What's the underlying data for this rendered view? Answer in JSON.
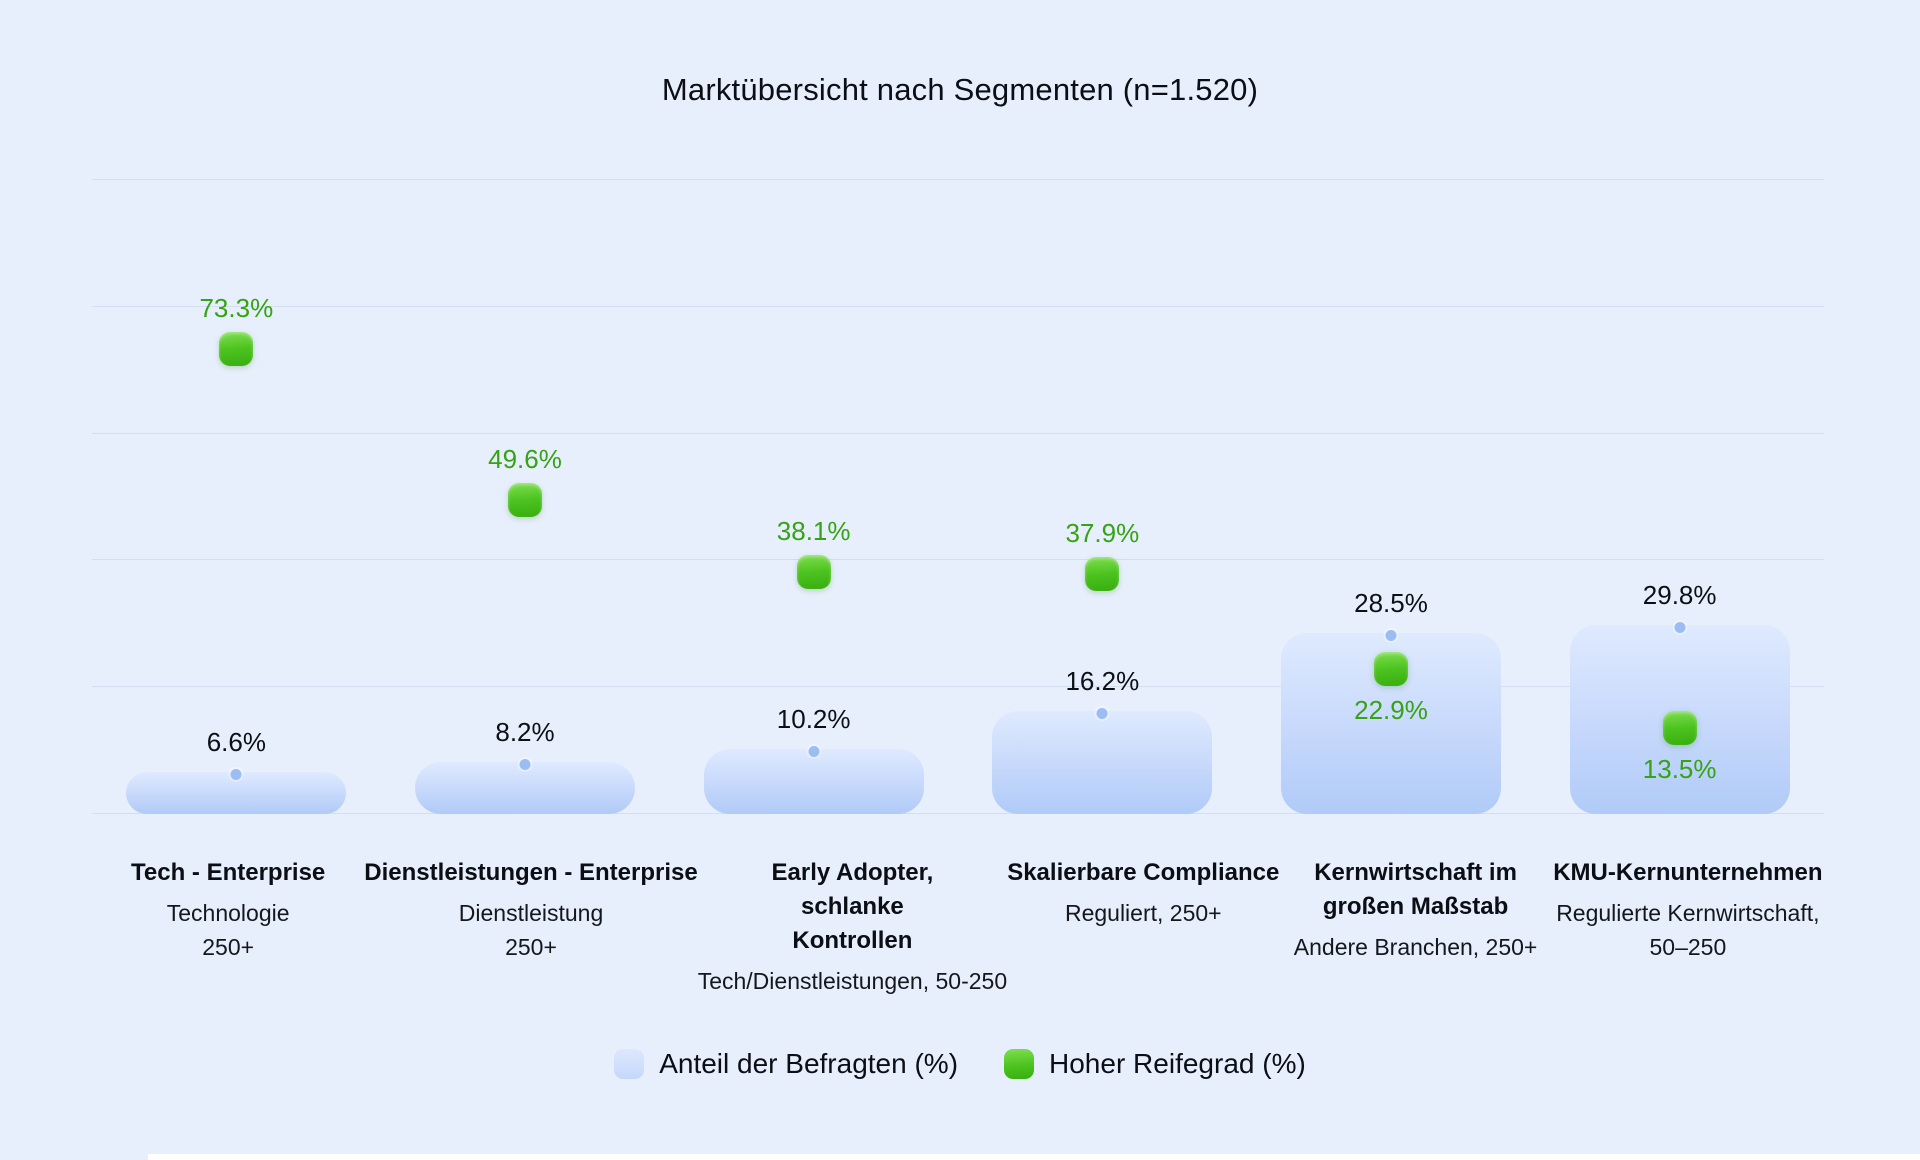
{
  "title": "Marktübersicht nach Segmenten (n=1.520)",
  "legend": {
    "items": [
      {
        "label": "Anteil der Befragten (%)",
        "swatch": "blue-rounded-square",
        "color": "#cbdcfb"
      },
      {
        "label": "Hoher Reifegrad (%)",
        "swatch": "green-rounded-square",
        "color": "#4cc31f"
      }
    ]
  },
  "colors": {
    "background": "#e8effc",
    "gridline": "#d3dff1",
    "bar_gradient_top": "#dfeafe",
    "bar_gradient_bottom": "#b0cbf8",
    "bar_dot": "#9cbdf3",
    "marker_green_top": "#7fdf50",
    "marker_green_bottom": "#38ae10",
    "green_text": "#35a313",
    "value_text": "#0c0f14"
  },
  "chart_data": {
    "type": "bar",
    "title": "Marktübersicht nach Segmenten (n=1.520)",
    "xlabel": "",
    "ylabel": "",
    "ylim": [
      0,
      100
    ],
    "gridlines": [
      0,
      20,
      40,
      60,
      80,
      100
    ],
    "grid": true,
    "legend_position": "bottom",
    "categories": [
      {
        "label_lines": [
          "Tech - Enterprise"
        ],
        "sub_lines": [
          "Technologie",
          "250+"
        ]
      },
      {
        "label_lines": [
          "Dienstleistungen - Enterprise"
        ],
        "sub_lines": [
          "Dienstleistung",
          "250+"
        ]
      },
      {
        "label_lines": [
          "Early Adopter,",
          "schlanke",
          "Kontrollen"
        ],
        "sub_lines": [
          "Tech/Dienstleistungen, 50-250"
        ]
      },
      {
        "label_lines": [
          "Skalierbare Compliance"
        ],
        "sub_lines": [
          "Reguliert, 250+"
        ]
      },
      {
        "label_lines": [
          "Kernwirtschaft im",
          "großen Maßstab"
        ],
        "sub_lines": [
          "Andere Branchen, 250+"
        ]
      },
      {
        "label_lines": [
          "KMU-Kernunternehmen"
        ],
        "sub_lines": [
          "Regulierte Kernwirtschaft,",
          "50–250"
        ]
      }
    ],
    "series": [
      {
        "name": "Anteil der Befragten (%)",
        "render": "rounded-bar",
        "values": [
          6.6,
          8.2,
          10.2,
          16.2,
          28.5,
          29.8
        ],
        "labels": [
          "6.6%",
          "8.2%",
          "10.2%",
          "16.2%",
          "28.5%",
          "29.8%"
        ]
      },
      {
        "name": "Hoher Reifegrad (%)",
        "render": "rounded-square-point",
        "values": [
          73.3,
          49.6,
          38.1,
          37.9,
          22.9,
          13.5
        ],
        "labels": [
          "73.3%",
          "49.6%",
          "38.1%",
          "37.9%",
          "22.9%",
          "13.5%"
        ]
      }
    ]
  }
}
